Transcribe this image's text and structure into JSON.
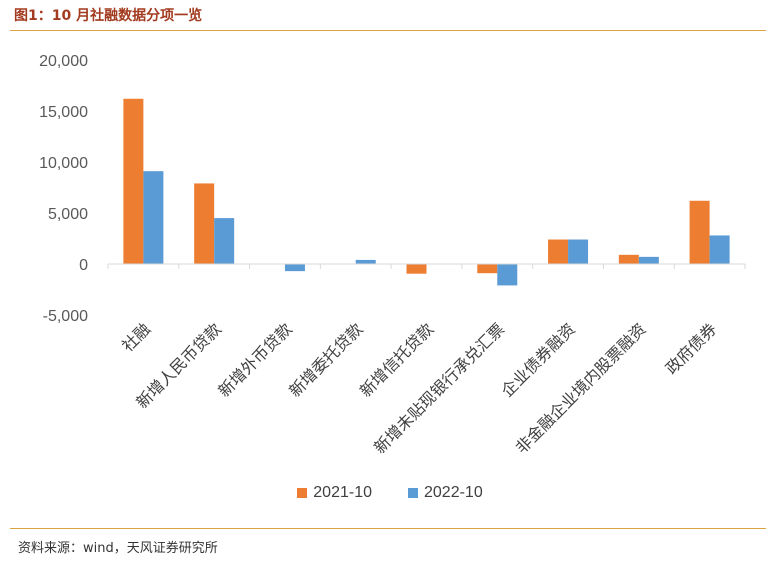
{
  "header": {
    "title": "图1：10 月社融数据分项一览"
  },
  "footer": {
    "source": "资料来源：wind，天风证券研究所"
  },
  "colors": {
    "series_2021": "#ed7d31",
    "series_2022": "#5b9bd5",
    "rule": "#d9a441"
  },
  "chart_data": {
    "type": "bar",
    "title": "",
    "xlabel": "",
    "ylabel": "",
    "ylim": [
      -5000,
      20000
    ],
    "yticks": [
      20000,
      15000,
      10000,
      5000,
      0,
      -5000
    ],
    "ytick_labels": [
      "20,000",
      "15,000",
      "10,000",
      "5,000",
      "0",
      "-5,000"
    ],
    "grid": false,
    "legend_position": "bottom",
    "categories": [
      "社融",
      "新增人民币贷款",
      "新增外币贷款",
      "新增委托贷款",
      "新增信托贷款",
      "新增未贴现银行承兑汇票",
      "企业债券融资",
      "非金融企业境内股票融资",
      "政府债券"
    ],
    "series": [
      {
        "name": "2021-10",
        "values": [
          16200,
          7900,
          0,
          0,
          -950,
          -900,
          2400,
          900,
          6200
        ]
      },
      {
        "name": "2022-10",
        "values": [
          9100,
          4500,
          -700,
          400,
          0,
          -2100,
          2400,
          700,
          2800
        ]
      }
    ]
  }
}
